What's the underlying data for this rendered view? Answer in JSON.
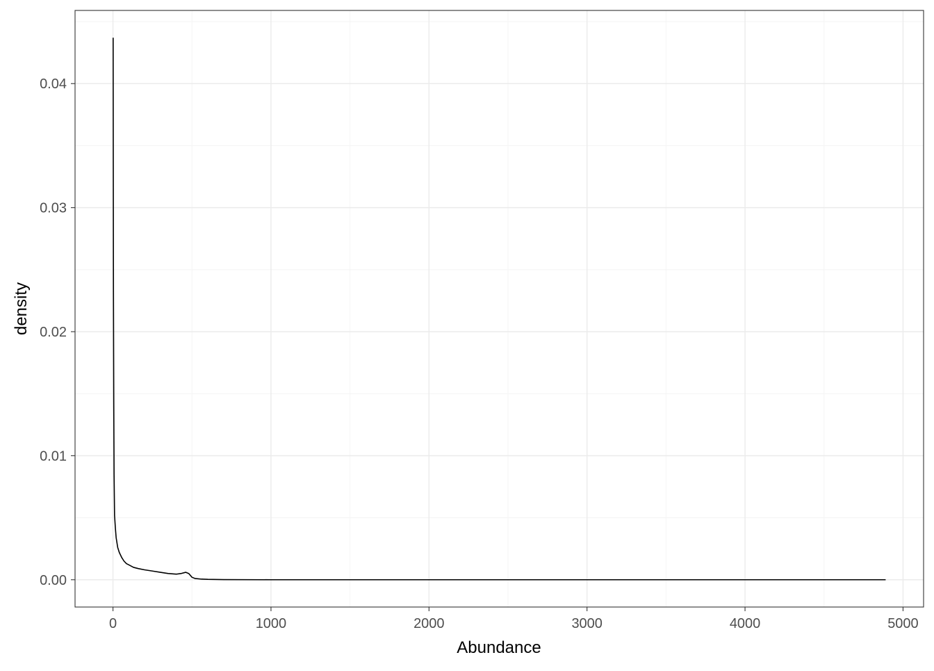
{
  "chart_data": {
    "type": "line",
    "title": "",
    "xlabel": "Abundance",
    "ylabel": "density",
    "xlim": [
      -240,
      5130
    ],
    "ylim": [
      -0.0022,
      0.0459
    ],
    "x_ticks": [
      0,
      1000,
      2000,
      3000,
      4000,
      5000
    ],
    "x_tick_labels": [
      "0",
      "1000",
      "2000",
      "3000",
      "4000",
      "5000"
    ],
    "y_ticks": [
      0.0,
      0.01,
      0.02,
      0.03,
      0.04
    ],
    "y_tick_labels": [
      "0.00",
      "0.01",
      "0.02",
      "0.03",
      "0.04"
    ],
    "x_minor_gridlines": [
      500,
      1500,
      2500,
      3500,
      4500
    ],
    "y_minor_gridlines": [
      0.005,
      0.015,
      0.025,
      0.035,
      0.045
    ],
    "grid": true,
    "legend": "none",
    "colors": {
      "line": "#000000",
      "panel_border": "#333333",
      "grid_major": "#ebebeb",
      "grid_minor": "#f5f5f5",
      "tick_label": "#4d4d4d",
      "axis_title": "#000000",
      "background": "#ffffff"
    },
    "series": [
      {
        "x": [
          1,
          2,
          3,
          5,
          7,
          10,
          15,
          20,
          30,
          40,
          55,
          70,
          85,
          100,
          130,
          160,
          200,
          250,
          300,
          350,
          400,
          430,
          460,
          480,
          500,
          520,
          560,
          600,
          700,
          1000,
          1500,
          2000,
          2500,
          3000,
          3500,
          4000,
          4500,
          4890
        ],
        "y": [
          0.0437,
          0.0335,
          0.0233,
          0.0143,
          0.0085,
          0.0052,
          0.0042,
          0.0034,
          0.0026,
          0.0022,
          0.0018,
          0.0015,
          0.0013,
          0.0012,
          0.001,
          0.0009,
          0.0008,
          0.0007,
          0.0006,
          0.0005,
          0.00045,
          0.0005,
          0.0006,
          0.0005,
          0.0002,
          0.0001,
          5e-05,
          3e-05,
          1e-05,
          0.0,
          0.0,
          0.0,
          0.0,
          0.0,
          0.0,
          0.0,
          0.0,
          0.0
        ]
      }
    ]
  }
}
